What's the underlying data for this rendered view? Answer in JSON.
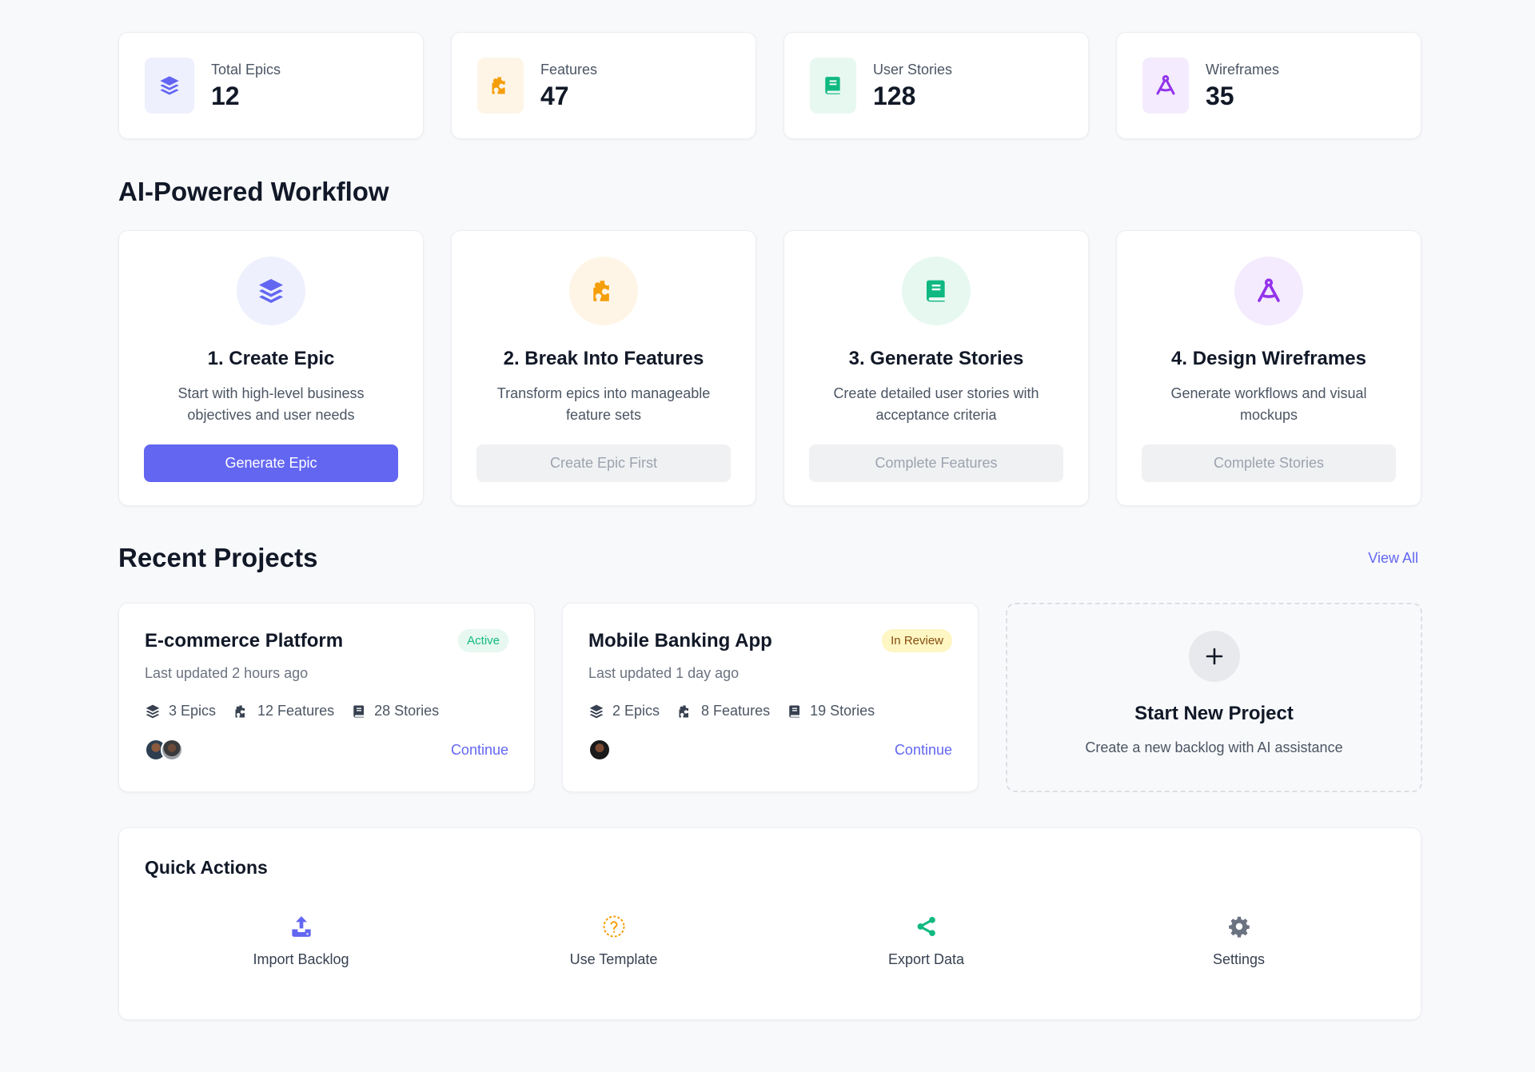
{
  "stats": [
    {
      "label": "Total Epics",
      "value": "12",
      "icon": "layers-icon",
      "color": "#6366f1",
      "bg": "#eef0fe"
    },
    {
      "label": "Features",
      "value": "47",
      "icon": "puzzle-icon",
      "color": "#f59e0b",
      "bg": "#fef5e7"
    },
    {
      "label": "User Stories",
      "value": "128",
      "icon": "book-icon",
      "color": "#10b981",
      "bg": "#e7f8f1"
    },
    {
      "label": "Wireframes",
      "value": "35",
      "icon": "compass-drafting-icon",
      "color": "#9333ea",
      "bg": "#f4ebfe"
    }
  ],
  "workflow": {
    "title": "AI-Powered Workflow",
    "steps": [
      {
        "title": "1. Create Epic",
        "desc": "Start with high-level business objectives and user needs",
        "button": "Generate Epic",
        "enabled": true
      },
      {
        "title": "2. Break Into Features",
        "desc": "Transform epics into manageable feature sets",
        "button": "Create Epic First",
        "enabled": false
      },
      {
        "title": "3. Generate Stories",
        "desc": "Create detailed user stories with acceptance criteria",
        "button": "Complete Features",
        "enabled": false
      },
      {
        "title": "4. Design Wireframes",
        "desc": "Generate workflows and visual mockups",
        "button": "Complete Stories",
        "enabled": false
      }
    ]
  },
  "recent": {
    "title": "Recent Projects",
    "view_all": "View All",
    "projects": [
      {
        "name": "E-commerce Platform",
        "status": "Active",
        "updated": "Last updated 2 hours ago",
        "epics": "3 Epics",
        "features": "12 Features",
        "stories": "28 Stories",
        "continue": "Continue"
      },
      {
        "name": "Mobile Banking App",
        "status": "In Review",
        "updated": "Last updated 1 day ago",
        "epics": "2 Epics",
        "features": "8 Features",
        "stories": "19 Stories",
        "continue": "Continue"
      }
    ],
    "new_project": {
      "title": "Start New Project",
      "desc": "Create a new backlog with AI assistance"
    }
  },
  "quick_actions": {
    "title": "Quick Actions",
    "items": [
      {
        "label": "Import Backlog",
        "icon": "upload-icon",
        "color": "#6366f1"
      },
      {
        "label": "Use Template",
        "icon": "question-circle-icon",
        "color": "#f59e0b"
      },
      {
        "label": "Export Data",
        "icon": "share-icon",
        "color": "#10b981"
      },
      {
        "label": "Settings",
        "icon": "gear-icon",
        "color": "#6b7280"
      }
    ]
  }
}
